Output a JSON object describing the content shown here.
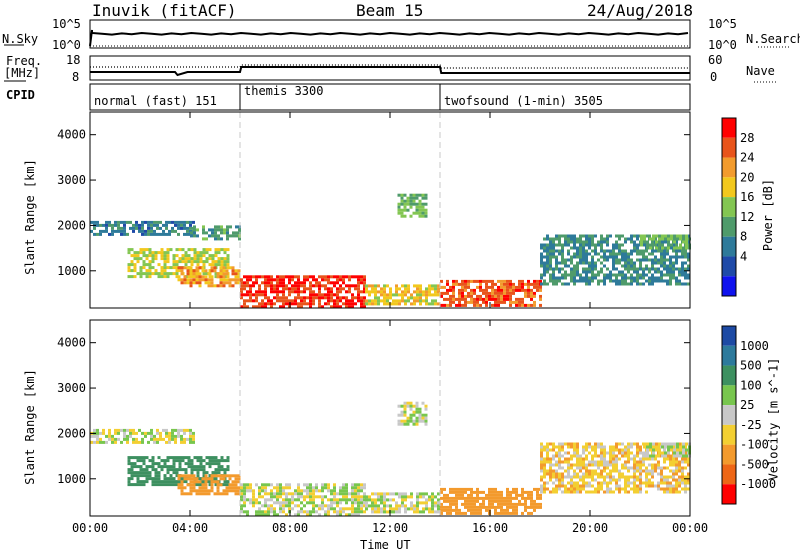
{
  "header": {
    "station": "Inuvik (fitACF)",
    "beam": "Beam 15",
    "date": "24/Aug/2018"
  },
  "aux_panels": {
    "nsky_label": "N.Sky",
    "nsearch_label": "N.Search",
    "freq_label_line1": "Freq.",
    "freq_label_line2": "[MHz]",
    "nave_label": "Nave",
    "cpid_label": "CPID",
    "nsky_ticks": [
      "10^5",
      "10^0"
    ],
    "nsearch_ticks": [
      "10^5",
      "10^0"
    ],
    "freq_ticks": [
      "18",
      "8"
    ],
    "nave_ticks": [
      "60",
      "0"
    ]
  },
  "cpid_segments": [
    {
      "label": "normal (fast) 151",
      "start": 0,
      "end": 6
    },
    {
      "label": "themis 3300",
      "start": 6,
      "end": 14
    },
    {
      "label": "twofsound (1-min) 3505",
      "start": 14,
      "end": 24
    }
  ],
  "colorbars": {
    "power": {
      "label": "Power [dB]",
      "ticks": [
        "28",
        "24",
        "20",
        "16",
        "12",
        "8",
        "4"
      ],
      "colors": [
        "#ff0000",
        "#e8541b",
        "#f29b2d",
        "#f2c81d",
        "#83c652",
        "#4f9b6b",
        "#2e7a9a",
        "#1f4aa8",
        "#0f12ee"
      ]
    },
    "velocity": {
      "label": "Velocity [m s^-1]",
      "ticks": [
        "1000",
        "500",
        "100",
        "25",
        "-25",
        "-100",
        "-500",
        "-1000"
      ],
      "colors": [
        "#1d4aa4",
        "#2d7a9c",
        "#3d9060",
        "#78c64e",
        "#c8c8c8",
        "#f3cf32",
        "#f39a2d",
        "#ee6616",
        "#ff0000"
      ]
    }
  },
  "chart_data": [
    {
      "type": "heatmap",
      "title": "Power",
      "ylabel": "Slant Range [km]",
      "xlabel": "",
      "x_range_hours": [
        0,
        24
      ],
      "ylim": [
        180,
        4500
      ],
      "y_ticks": [
        "1000",
        "2000",
        "3000",
        "4000"
      ],
      "x_ticks": [
        "00:00",
        "04:00",
        "08:00",
        "12:00",
        "16:00",
        "20:00",
        "00:00"
      ],
      "value_label": "Power [dB]",
      "regions": [
        {
          "t": [
            0,
            4.2
          ],
          "r": [
            1800,
            2100
          ],
          "value": 9
        },
        {
          "t": [
            1.5,
            5.5
          ],
          "r": [
            900,
            1500
          ],
          "value": 18
        },
        {
          "t": [
            3.5,
            6
          ],
          "r": [
            700,
            1100
          ],
          "value": 24
        },
        {
          "t": [
            4,
            6
          ],
          "r": [
            1700,
            2000
          ],
          "value": 12
        },
        {
          "t": [
            6,
            11
          ],
          "r": [
            200,
            900
          ],
          "value": 30
        },
        {
          "t": [
            11,
            14
          ],
          "r": [
            250,
            700
          ],
          "value": 20
        },
        {
          "t": [
            14,
            18
          ],
          "r": [
            250,
            800
          ],
          "value": 28
        },
        {
          "t": [
            12.3,
            13.5
          ],
          "r": [
            2200,
            2700
          ],
          "value": 14
        },
        {
          "t": [
            18,
            24
          ],
          "r": [
            700,
            1800
          ],
          "value": 10
        },
        {
          "t": [
            22,
            24
          ],
          "r": [
            1500,
            1800
          ],
          "value": 14
        }
      ]
    },
    {
      "type": "heatmap",
      "title": "Velocity",
      "ylabel": "Slant Range [km]",
      "xlabel": "Time UT",
      "x_range_hours": [
        0,
        24
      ],
      "ylim": [
        180,
        4500
      ],
      "y_ticks": [
        "1000",
        "2000",
        "3000",
        "4000"
      ],
      "x_ticks": [
        "00:00",
        "04:00",
        "08:00",
        "12:00",
        "16:00",
        "20:00",
        "00:00"
      ],
      "value_label": "Velocity [m s^-1]",
      "regions": [
        {
          "t": [
            0,
            4.2
          ],
          "r": [
            1800,
            2100
          ],
          "value": 0
        },
        {
          "t": [
            1.5,
            5.5
          ],
          "r": [
            900,
            1500
          ],
          "value": 200
        },
        {
          "t": [
            3.5,
            6
          ],
          "r": [
            700,
            1100
          ],
          "value": -200
        },
        {
          "t": [
            6,
            11
          ],
          "r": [
            200,
            900
          ],
          "value": 0
        },
        {
          "t": [
            11,
            14
          ],
          "r": [
            250,
            700
          ],
          "value": 0
        },
        {
          "t": [
            14,
            18
          ],
          "r": [
            250,
            800
          ],
          "value": -300
        },
        {
          "t": [
            12.3,
            13.5
          ],
          "r": [
            2200,
            2700
          ],
          "value": 0
        },
        {
          "t": [
            18,
            24
          ],
          "r": [
            700,
            1800
          ],
          "value": -60
        },
        {
          "t": [
            22,
            24
          ],
          "r": [
            1500,
            1800
          ],
          "value": 0
        }
      ]
    }
  ]
}
